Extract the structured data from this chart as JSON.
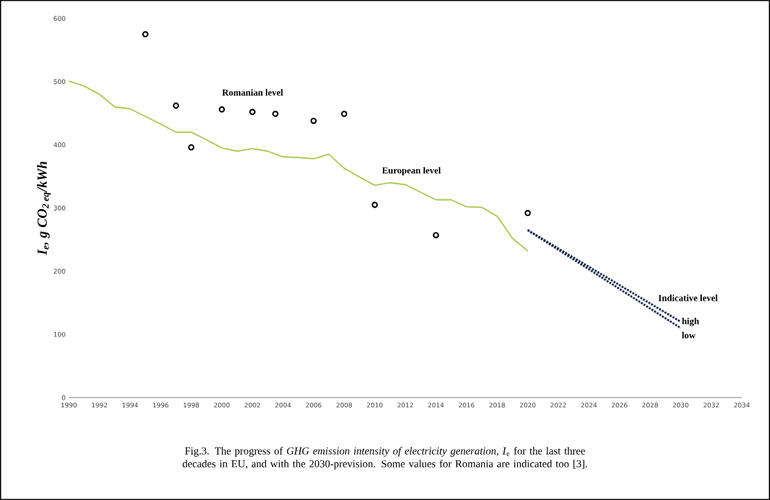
{
  "chart_data": {
    "type": "line",
    "ylabel": "I$_{e}$, g CO$_{2 eq}$/kWh",
    "xlim": [
      1990,
      2034
    ],
    "ylim": [
      0,
      600
    ],
    "xticks": [
      1990,
      1992,
      1994,
      1996,
      1998,
      2000,
      2002,
      2004,
      2006,
      2008,
      2010,
      2012,
      2014,
      2016,
      2018,
      2020,
      2022,
      2024,
      2026,
      2028,
      2030,
      2032,
      2034
    ],
    "yticks": [
      0,
      100,
      200,
      300,
      400,
      500,
      600
    ],
    "series": [
      {
        "type": "scatter",
        "color": "#000000",
        "marker": "circle",
        "x": [
          1995,
          1997,
          1998,
          2000,
          2002,
          2003.5,
          2006,
          2008,
          2010,
          2014,
          2020
        ],
        "values": [
          575,
          462,
          396,
          456,
          452,
          449,
          438,
          449,
          305,
          257,
          292
        ]
      },
      {
        "color": "#a9c94a",
        "line_style": "solid",
        "x": [
          1990,
          1991,
          1992,
          1993,
          1994,
          1995,
          1996,
          1997,
          1998,
          1999,
          2000,
          2001,
          2002,
          2003,
          2004,
          2005,
          2006,
          2007,
          2008,
          2009,
          2010,
          2011,
          2012,
          2013,
          2014,
          2015,
          2016,
          2017,
          2018,
          2019,
          2020
        ],
        "values": [
          501,
          493,
          480,
          460,
          457,
          445,
          433,
          420,
          420,
          408,
          395,
          390,
          394,
          390,
          381,
          380,
          378,
          385,
          363,
          349,
          336,
          340,
          337,
          325,
          313,
          313,
          302,
          301,
          287,
          252,
          232
        ]
      },
      {
        "name": "high",
        "color": "#1f2d4f",
        "line_style": "dotted",
        "x": [
          2020,
          2030
        ],
        "values": [
          265,
          120
        ]
      },
      {
        "name": "low",
        "color": "#1f2d4f",
        "line_style": "dotted",
        "x": [
          2020,
          2030
        ],
        "values": [
          265,
          110
        ]
      }
    ],
    "annotations": [
      "Romanian level",
      "European level",
      "Indicative level",
      "Fig.3. The progress of *GHG emission intensity of electricity generation, I*$_{e}$ for the last three decades in EU, and with the 2030-prevision. Some values for Romania are indicated too [3]."
    ]
  }
}
